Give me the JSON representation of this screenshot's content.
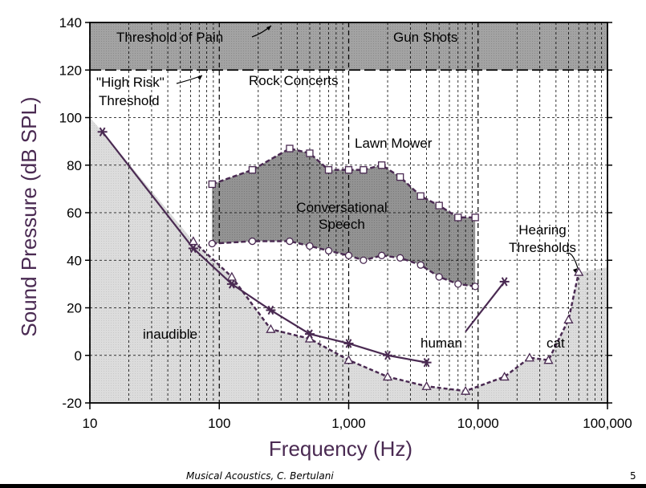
{
  "header": {
    "title_fragment": ""
  },
  "footer": {
    "credit": "Musical Acoustics, C. Bertulani",
    "page_number": "5"
  },
  "colors": {
    "curve": "#4a2a52",
    "frame": "#000000",
    "band": "#9d9d9d",
    "inaudible": "#d8d8d8",
    "speech": "#8a8a8a",
    "axis_label": "#4a2a52"
  },
  "chart_data": {
    "type": "line",
    "title": "",
    "xlabel": "Frequency (Hz)",
    "ylabel": "Sound Pressure (dB SPL)",
    "xscale": "log",
    "xlim": [
      10,
      100000
    ],
    "ylim": [
      -20,
      140
    ],
    "x_ticks": [
      10,
      100,
      1000,
      10000,
      100000
    ],
    "x_tick_labels": [
      "10",
      "100",
      "1,000",
      "10,000",
      "100,000"
    ],
    "y_ticks": [
      -20,
      0,
      20,
      40,
      60,
      80,
      100,
      120,
      140
    ],
    "y_tick_labels": [
      "-20",
      "0",
      "20",
      "40",
      "60",
      "80",
      "100",
      "120",
      "140"
    ],
    "grid": true,
    "series": [
      {
        "name": "human",
        "style": "solid",
        "marker": "star",
        "x": [
          12.5,
          63,
          125,
          250,
          500,
          1000,
          2000,
          4000
        ],
        "y": [
          94,
          45,
          30,
          19,
          9,
          5,
          0,
          -3
        ]
      },
      {
        "name": "cat",
        "style": "dashed",
        "marker": "triangle",
        "x": [
          63,
          125,
          250,
          500,
          1000,
          2000,
          4000,
          8000,
          16000,
          25000,
          35000,
          50000,
          60000
        ],
        "y": [
          48,
          33,
          11,
          7,
          -2,
          -9,
          -13,
          -15,
          -9,
          -1,
          -2,
          15,
          35
        ]
      },
      {
        "name": "Conversational Speech upper",
        "style": "dashed",
        "marker": "square",
        "x": [
          88,
          180,
          350,
          500,
          700,
          1000,
          1300,
          1800,
          2500,
          3600,
          5000,
          7000,
          9500
        ],
        "y": [
          72,
          78,
          87,
          85,
          78,
          78,
          78,
          80,
          75,
          67,
          63,
          58,
          58
        ]
      },
      {
        "name": "Conversational Speech lower",
        "style": "dashed",
        "marker": "circle",
        "x": [
          88,
          180,
          350,
          500,
          700,
          1000,
          1300,
          1800,
          2500,
          3600,
          5000,
          7000,
          9500
        ],
        "y": [
          47,
          48,
          48,
          46,
          44,
          42,
          40,
          42,
          41,
          38,
          33,
          30,
          29
        ]
      }
    ],
    "bands": [
      {
        "label": "Threshold of Pain",
        "y": 140
      },
      {
        "label": "\"High Risk\" Threshold",
        "y": 120
      }
    ],
    "annotations": [
      {
        "text": "Threshold of Pain"
      },
      {
        "text": "Gun Shots"
      },
      {
        "text": "\"High Risk\""
      },
      {
        "text": "Threshold"
      },
      {
        "text": "Rock Concerts"
      },
      {
        "text": "Lawn Mower"
      },
      {
        "text": "Conversational"
      },
      {
        "text": "Speech"
      },
      {
        "text": "Hearing"
      },
      {
        "text": "Thresholds"
      },
      {
        "text": "inaudible"
      },
      {
        "text": "human"
      },
      {
        "text": "cat"
      }
    ]
  }
}
